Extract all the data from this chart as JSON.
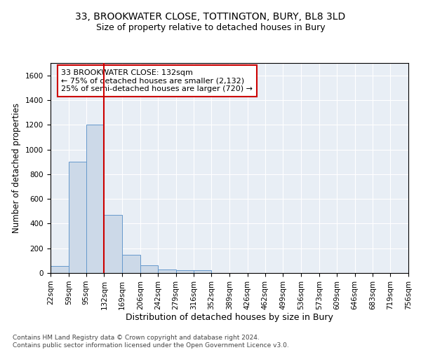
{
  "title_line1": "33, BROOKWATER CLOSE, TOTTINGTON, BURY, BL8 3LD",
  "title_line2": "Size of property relative to detached houses in Bury",
  "xlabel": "Distribution of detached houses by size in Bury",
  "ylabel": "Number of detached properties",
  "bin_edges": [
    22,
    59,
    95,
    132,
    169,
    206,
    242,
    279,
    316,
    352,
    389,
    426,
    462,
    499,
    536,
    573,
    609,
    646,
    683,
    719,
    756
  ],
  "bar_heights": [
    55,
    900,
    1200,
    470,
    150,
    60,
    30,
    20,
    20,
    0,
    0,
    0,
    0,
    0,
    0,
    0,
    0,
    0,
    0,
    0
  ],
  "bar_color": "#ccd9e8",
  "bar_edge_color": "#6699cc",
  "red_line_x": 132,
  "red_line_color": "#cc0000",
  "ylim": [
    0,
    1700
  ],
  "yticks": [
    0,
    200,
    400,
    600,
    800,
    1000,
    1200,
    1400,
    1600
  ],
  "annotation_line1": "33 BROOKWATER CLOSE: 132sqm",
  "annotation_line2": "← 75% of detached houses are smaller (2,132)",
  "annotation_line3": "25% of semi-detached houses are larger (720) →",
  "annotation_box_color": "white",
  "annotation_box_edgecolor": "#cc0000",
  "footnote": "Contains HM Land Registry data © Crown copyright and database right 2024.\nContains public sector information licensed under the Open Government Licence v3.0.",
  "background_color": "#e8eef5",
  "grid_color": "white",
  "title1_fontsize": 10,
  "title2_fontsize": 9,
  "xlabel_fontsize": 9,
  "ylabel_fontsize": 8.5,
  "tick_fontsize": 7.5,
  "annot_fontsize": 8,
  "footnote_fontsize": 6.5
}
